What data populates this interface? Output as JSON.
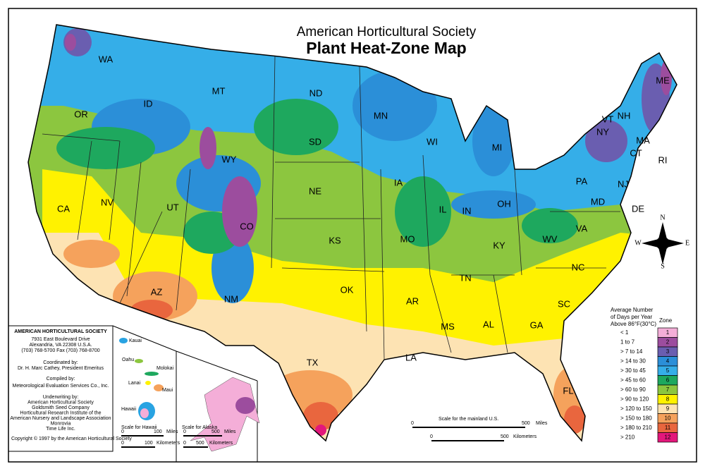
{
  "header": {
    "title": "American Horticultural Society",
    "subtitle": "Plant Heat-Zone Map"
  },
  "states": [
    "WA",
    "OR",
    "ID",
    "MT",
    "ND",
    "MN",
    "WI",
    "MI",
    "ME",
    "NY",
    "VT",
    "NH",
    "MA",
    "CT",
    "RI",
    "PA",
    "NJ",
    "OH",
    "IN",
    "IL",
    "IA",
    "NE",
    "SD",
    "WY",
    "NV",
    "UT",
    "CO",
    "CA",
    "AZ",
    "NM",
    "KS",
    "MO",
    "KY",
    "WV",
    "VA",
    "MD",
    "DE",
    "NC",
    "TN",
    "AR",
    "OK",
    "TX",
    "LA",
    "MS",
    "AL",
    "GA",
    "SC",
    "FL"
  ],
  "compass": [
    "N",
    "E",
    "S",
    "W"
  ],
  "legend": {
    "heading": [
      "Average Number",
      "of Days per Year",
      "Above 86°F(30°C)"
    ],
    "zone_heading": "Zone",
    "zones": [
      {
        "range": "< 1",
        "zone": "1",
        "color": "#f4aed8"
      },
      {
        "range": "1 to 7",
        "zone": "2",
        "color": "#9c4d9e"
      },
      {
        "range": "> 7 to 14",
        "zone": "3",
        "color": "#6a5eb0"
      },
      {
        "range": "> 14 to 30",
        "zone": "4",
        "color": "#2b8fd8"
      },
      {
        "range": "> 30 to 45",
        "zone": "5",
        "color": "#35aee8"
      },
      {
        "range": "> 45 to 60",
        "zone": "6",
        "color": "#1ea85e"
      },
      {
        "range": "> 60 to 90",
        "zone": "7",
        "color": "#8cc63f"
      },
      {
        "range": "> 90 to 120",
        "zone": "8",
        "color": "#fff200"
      },
      {
        "range": "> 120 to 150",
        "zone": "9",
        "color": "#fde3b3"
      },
      {
        "range": "> 150 to 180",
        "zone": "10",
        "color": "#f5a25c"
      },
      {
        "range": "> 180 to 210",
        "zone": "11",
        "color": "#e9663e"
      },
      {
        "range": "> 210",
        "zone": "12",
        "color": "#e3177b"
      }
    ]
  },
  "sidebar": {
    "org": "AMERICAN HORTICULTURAL SOCIETY",
    "address": [
      "7931 East Boulevard Drive",
      "Alexandria, VA 22308 U.S.A.",
      "(703) 768-5700 Fax (703) 768-8700"
    ],
    "coordinated_heading": "Coordinated by:",
    "coordinator": "Dr. H. Marc Cathey, President Emeritus",
    "compiled_heading": "Compiled by:",
    "compiler": "Meteorological Evaluation Services Co., Inc.",
    "underwriting_heading": "Underwriting by:",
    "underwriters": [
      "American Horticultural Society",
      "Goldsmith Seed Company",
      "Horticultural Research Institute of the",
      "American Nursery and Landscape Association",
      "Monrovia",
      "Time Life Inc."
    ],
    "copyright": "Copyright © 1997 by the American Horticultural Society"
  },
  "hawaii": {
    "islands": [
      "Kauai",
      "Oahu",
      "Molokai",
      "Lanai",
      "Maui",
      "Hawaii"
    ],
    "scale_title": "Scale for Hawaii",
    "scale": [
      "0",
      "100",
      "Miles",
      "0",
      "100",
      "Kilometers"
    ]
  },
  "alaska": {
    "scale_title": "Scale for Alaska",
    "scale": [
      "0",
      "500",
      "Miles",
      "0",
      "500",
      "Kilometers"
    ]
  },
  "mainland_scale": {
    "title": "Scale for the mainland U.S.",
    "scale": [
      "0",
      "500",
      "Miles",
      "0",
      "500",
      "Kilometers"
    ]
  }
}
